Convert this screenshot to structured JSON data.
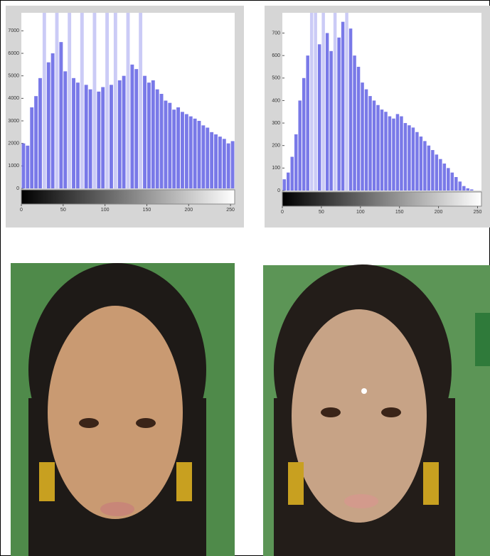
{
  "chart_data": [
    {
      "type": "histogram",
      "color": "#6a6ae6",
      "bins": [
        0,
        5,
        10,
        15,
        20,
        25,
        30,
        35,
        40,
        45,
        50,
        55,
        60,
        65,
        70,
        75,
        80,
        85,
        90,
        95,
        100,
        105,
        110,
        115,
        120,
        125,
        130,
        135,
        140,
        145,
        150,
        155,
        160,
        165,
        170,
        175,
        180,
        185,
        190,
        195,
        200,
        205,
        210,
        215,
        220,
        225,
        230,
        235,
        240,
        245,
        250,
        255
      ],
      "values": [
        2000,
        1900,
        3600,
        4100,
        4900,
        7800,
        5600,
        6000,
        7800,
        6500,
        5200,
        7800,
        4900,
        4700,
        7800,
        4600,
        4400,
        7800,
        4300,
        4500,
        7800,
        4600,
        7800,
        4800,
        5000,
        7800,
        5500,
        5300,
        7800,
        5000,
        4700,
        4800,
        4400,
        4200,
        3900,
        3800,
        3500,
        3600,
        3400,
        3300,
        3200,
        3100,
        3000,
        2800,
        2700,
        2500,
        2400,
        2300,
        2200,
        2000,
        2100
      ],
      "xlim": [
        0,
        255
      ],
      "xticks": [
        0,
        50,
        100,
        150,
        200,
        250
      ],
      "ylim": [
        0,
        7800
      ],
      "yticks": [
        0,
        1000,
        2000,
        3000,
        4000,
        5000,
        6000,
        7000
      ]
    },
    {
      "type": "histogram",
      "color": "#6a6ae6",
      "bins": [
        0,
        5,
        10,
        15,
        20,
        25,
        30,
        35,
        40,
        45,
        50,
        55,
        60,
        65,
        70,
        75,
        80,
        85,
        90,
        95,
        100,
        105,
        110,
        115,
        120,
        125,
        130,
        135,
        140,
        145,
        150,
        155,
        160,
        165,
        170,
        175,
        180,
        185,
        190,
        195,
        200,
        205,
        210,
        215,
        220,
        225,
        230,
        235,
        240,
        245,
        250,
        255
      ],
      "values": [
        50,
        80,
        150,
        250,
        400,
        500,
        600,
        790,
        790,
        650,
        790,
        700,
        620,
        790,
        680,
        750,
        790,
        720,
        600,
        550,
        480,
        450,
        420,
        400,
        380,
        360,
        350,
        330,
        320,
        340,
        330,
        300,
        290,
        280,
        260,
        240,
        220,
        200,
        180,
        160,
        140,
        120,
        100,
        80,
        60,
        40,
        20,
        10,
        5,
        0,
        0
      ],
      "xlim": [
        0,
        255
      ],
      "xticks": [
        0,
        50,
        100,
        150,
        200,
        250
      ],
      "ylim": [
        0,
        790
      ],
      "yticks": [
        0,
        100,
        200,
        300,
        400,
        500,
        600,
        700
      ]
    }
  ]
}
